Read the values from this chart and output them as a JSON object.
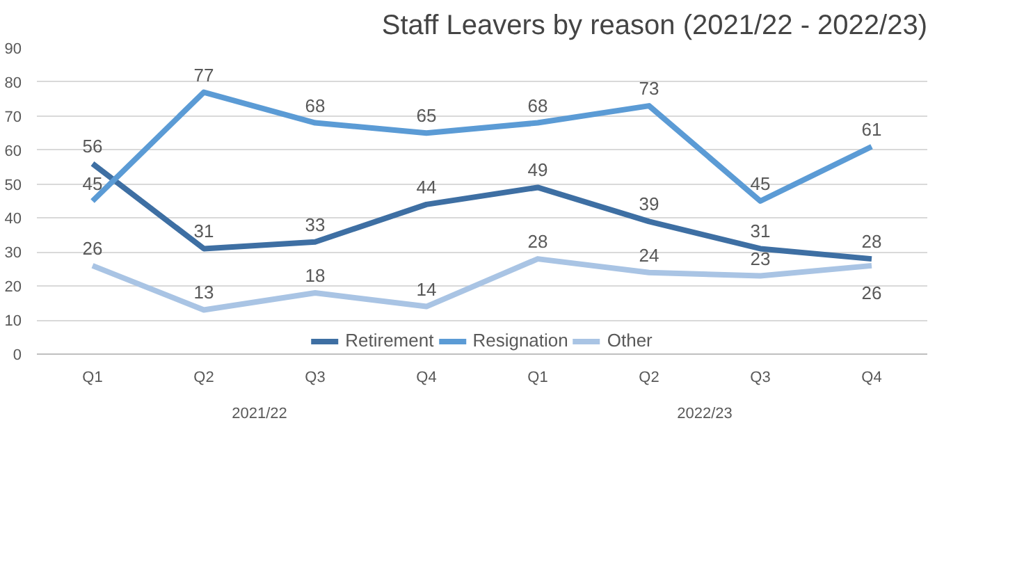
{
  "chart_data": {
    "type": "line",
    "title": "Staff Leavers by reason (2021/22 - 2022/23)",
    "categories": [
      "Q1",
      "Q2",
      "Q3",
      "Q4",
      "Q1",
      "Q2",
      "Q3",
      "Q4"
    ],
    "series": [
      {
        "name": "Retirement",
        "color": "#3e6fa3",
        "values": [
          56,
          31,
          33,
          44,
          49,
          39,
          31,
          28
        ]
      },
      {
        "name": "Resignation",
        "color": "#5b9bd5",
        "values": [
          45,
          77,
          68,
          65,
          68,
          73,
          45,
          61
        ]
      },
      {
        "name": "Other",
        "color": "#a9c4e4",
        "values": [
          26,
          13,
          18,
          14,
          28,
          24,
          23,
          26
        ]
      }
    ],
    "annotations": [
      "2021/22",
      "2022/23"
    ],
    "ylim": [
      0,
      90
    ],
    "yticks": [
      0,
      10,
      20,
      30,
      40,
      50,
      60,
      70,
      80,
      90
    ],
    "grid": "y",
    "legend": "bottom",
    "data_labels": true,
    "marker": "none",
    "line_style": "solid"
  }
}
